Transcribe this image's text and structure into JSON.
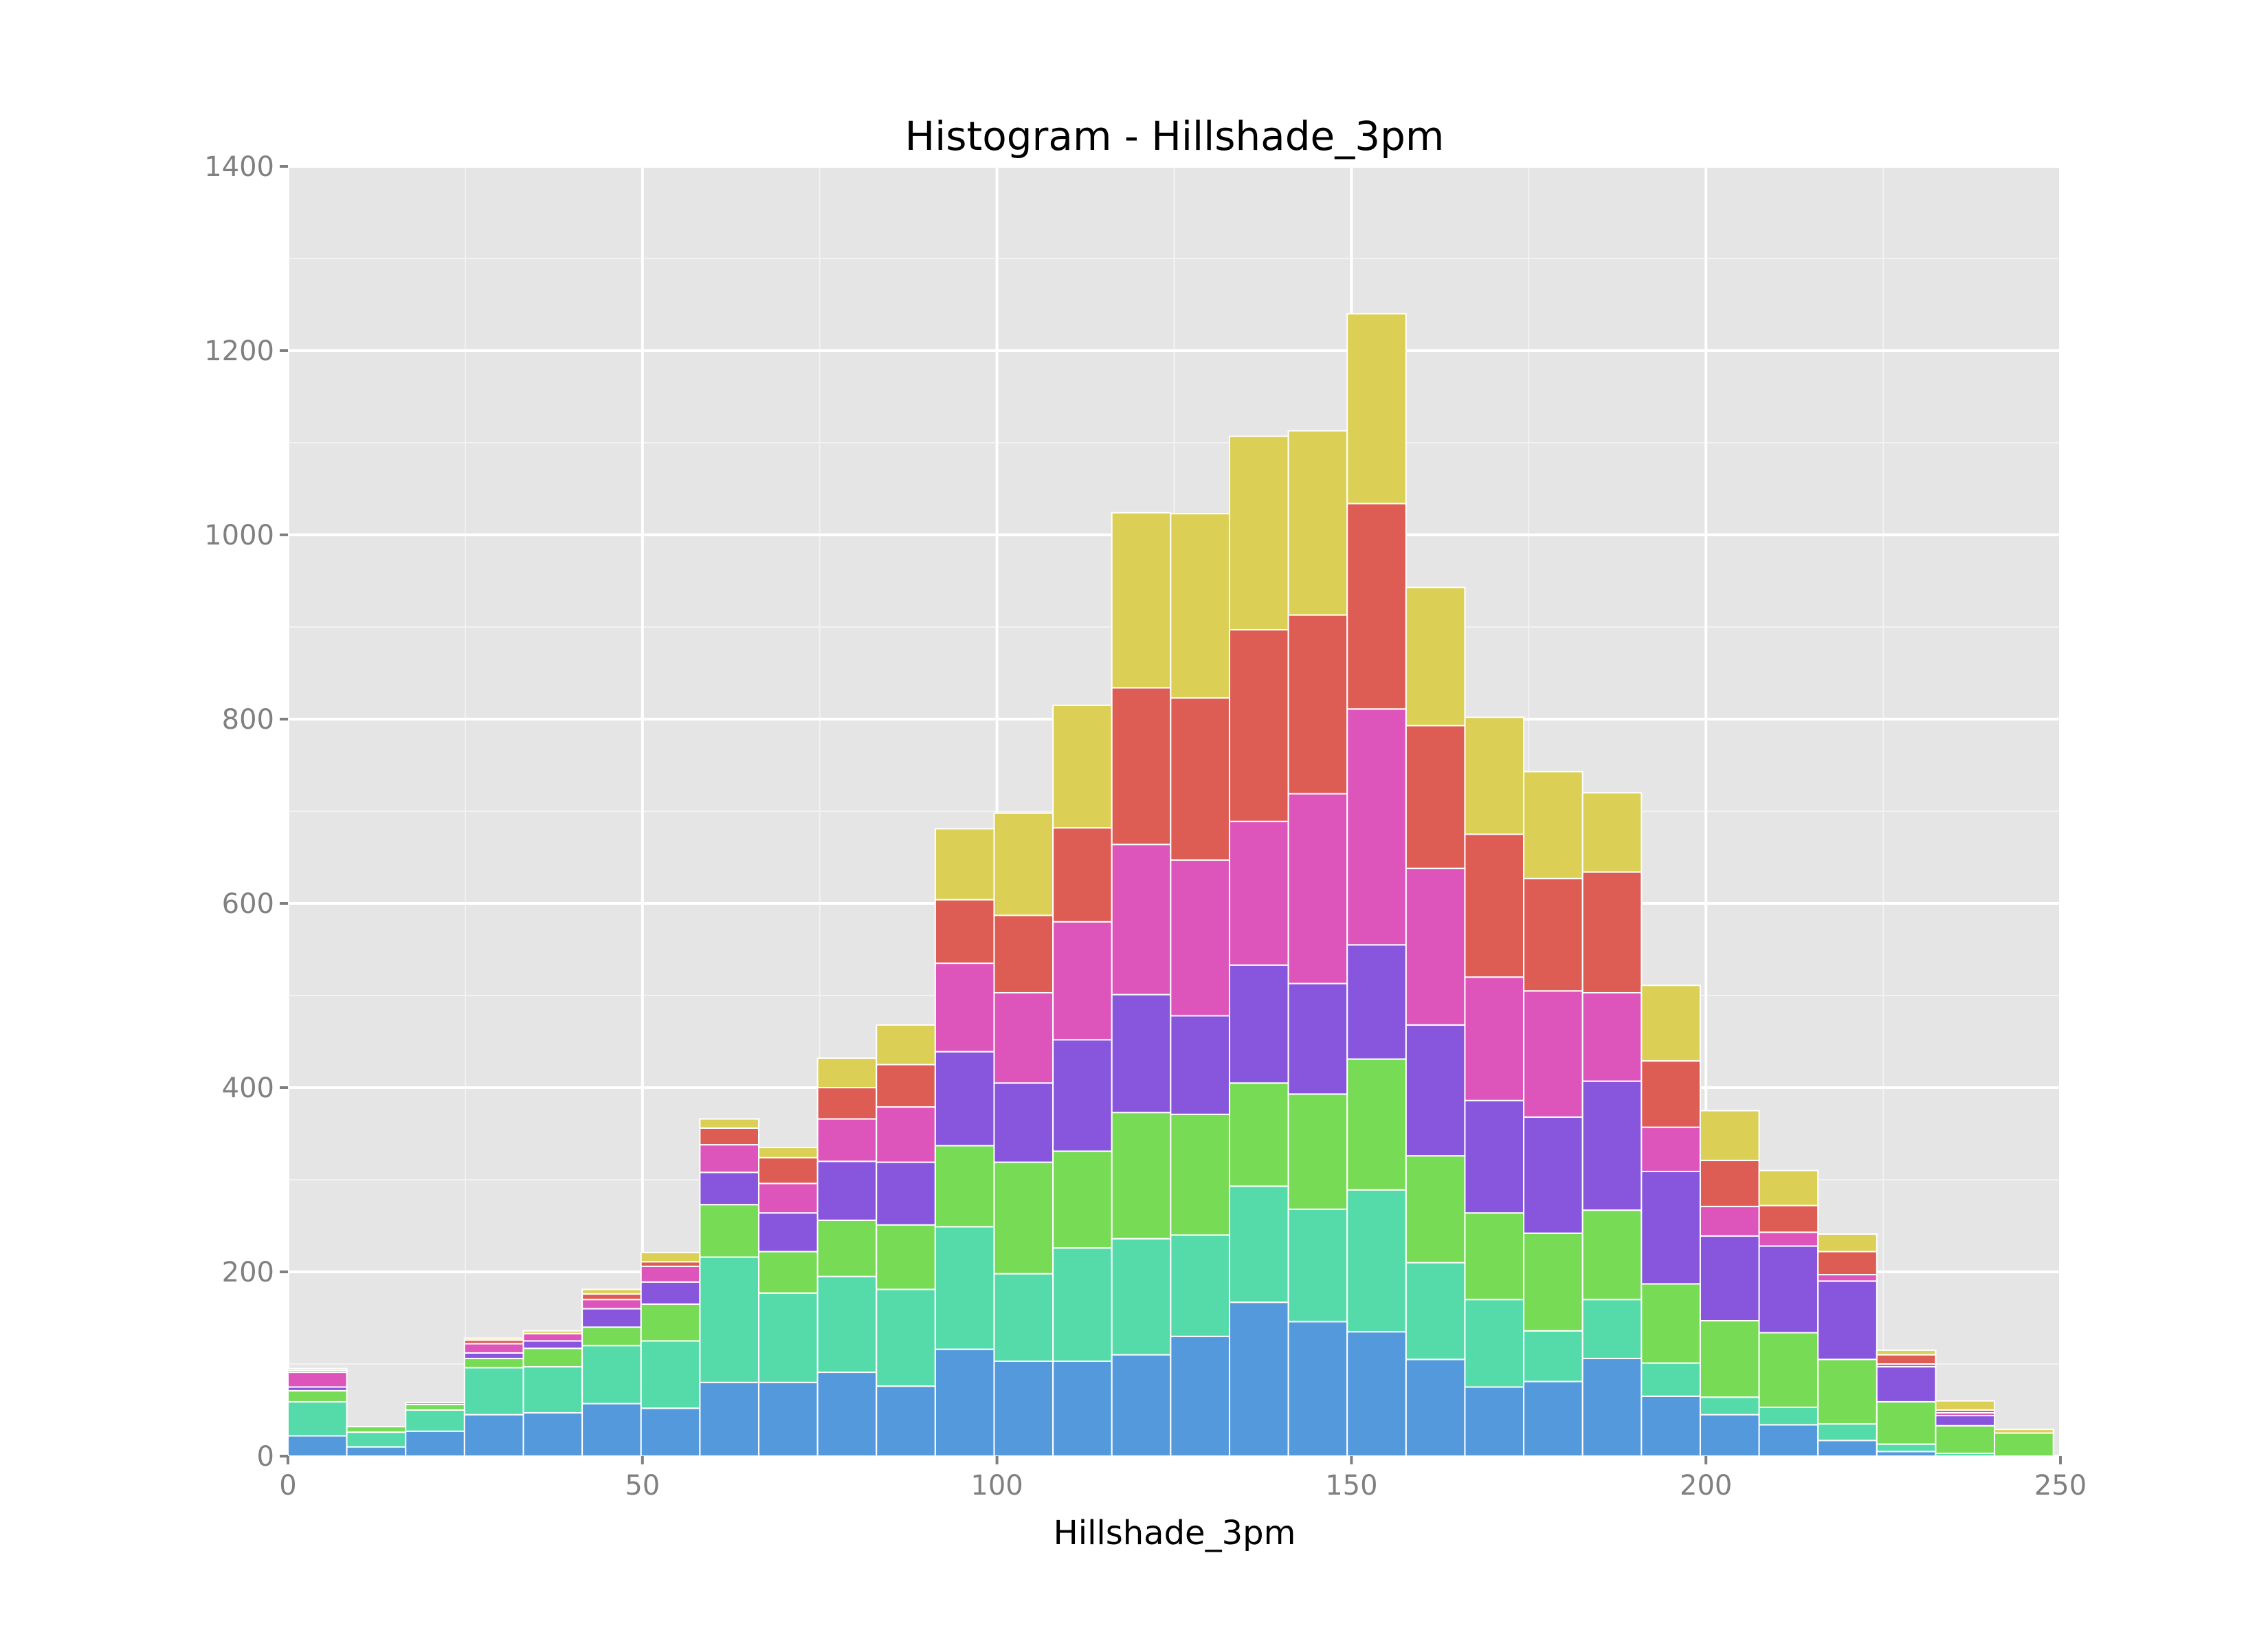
{
  "chart_data": {
    "type": "bar",
    "stacked": true,
    "title": "Histogram - Hillshade_3pm",
    "xlabel": "Hillshade_3pm",
    "ylabel": "",
    "xlim": [
      0,
      250
    ],
    "ylim": [
      0,
      1400
    ],
    "xticks": [
      0,
      50,
      100,
      150,
      200,
      250
    ],
    "yticks": [
      0,
      200,
      400,
      600,
      800,
      1000,
      1200,
      1400
    ],
    "grid": true,
    "legend": "none",
    "bin_width": 8.3,
    "bin_edges": [
      0,
      8.3,
      16.6,
      24.9,
      33.2,
      41.5,
      49.8,
      58.1,
      66.4,
      74.7,
      83.0,
      91.3,
      99.6,
      107.9,
      116.2,
      124.5,
      132.8,
      141.1,
      149.4,
      157.7,
      166.0,
      174.3,
      182.6,
      190.9,
      199.2,
      207.5,
      215.8,
      224.1,
      232.4,
      240.7,
      249.0
    ],
    "series": [
      {
        "color": "#5599dd",
        "values": [
          22,
          10,
          27,
          45,
          47,
          57,
          52,
          80,
          80,
          91,
          76,
          116,
          103,
          103,
          110,
          130,
          167,
          146,
          135,
          105,
          75,
          81,
          106,
          65,
          45,
          34,
          17,
          5,
          0,
          0
        ]
      },
      {
        "color": "#55dbaa",
        "values": [
          37,
          16,
          23,
          51,
          50,
          63,
          73,
          136,
          97,
          104,
          105,
          133,
          95,
          123,
          126,
          110,
          126,
          122,
          154,
          105,
          95,
          55,
          64,
          36,
          19,
          19,
          18,
          8,
          3,
          0
        ]
      },
      {
        "color": "#77db55",
        "values": [
          12,
          6,
          6,
          10,
          20,
          20,
          40,
          57,
          45,
          61,
          70,
          88,
          121,
          105,
          137,
          131,
          112,
          125,
          142,
          116,
          94,
          106,
          97,
          86,
          83,
          81,
          70,
          46,
          30,
          25
        ]
      },
      {
        "color": "#8855dd",
        "values": [
          4,
          0,
          0,
          6,
          8,
          20,
          24,
          35,
          42,
          64,
          68,
          102,
          86,
          121,
          128,
          107,
          128,
          120,
          124,
          142,
          122,
          126,
          140,
          122,
          92,
          94,
          85,
          38,
          11,
          0
        ]
      },
      {
        "color": "#dd55bb",
        "values": [
          16,
          0,
          2,
          10,
          8,
          10,
          17,
          30,
          32,
          46,
          60,
          96,
          98,
          128,
          163,
          169,
          156,
          206,
          256,
          170,
          134,
          137,
          96,
          48,
          32,
          15,
          7,
          3,
          3,
          0
        ]
      },
      {
        "color": "#dd5d55",
        "values": [
          2,
          0,
          0,
          4,
          0,
          6,
          5,
          18,
          28,
          34,
          46,
          69,
          84,
          102,
          170,
          176,
          208,
          194,
          223,
          155,
          155,
          122,
          131,
          72,
          50,
          29,
          25,
          10,
          3,
          0
        ]
      },
      {
        "color": "#dbd055",
        "values": [
          2,
          0,
          0,
          2,
          3,
          5,
          10,
          10,
          11,
          32,
          43,
          77,
          111,
          133,
          190,
          200,
          210,
          200,
          206,
          150,
          127,
          116,
          86,
          82,
          54,
          38,
          19,
          5,
          10,
          4
        ]
      }
    ]
  }
}
